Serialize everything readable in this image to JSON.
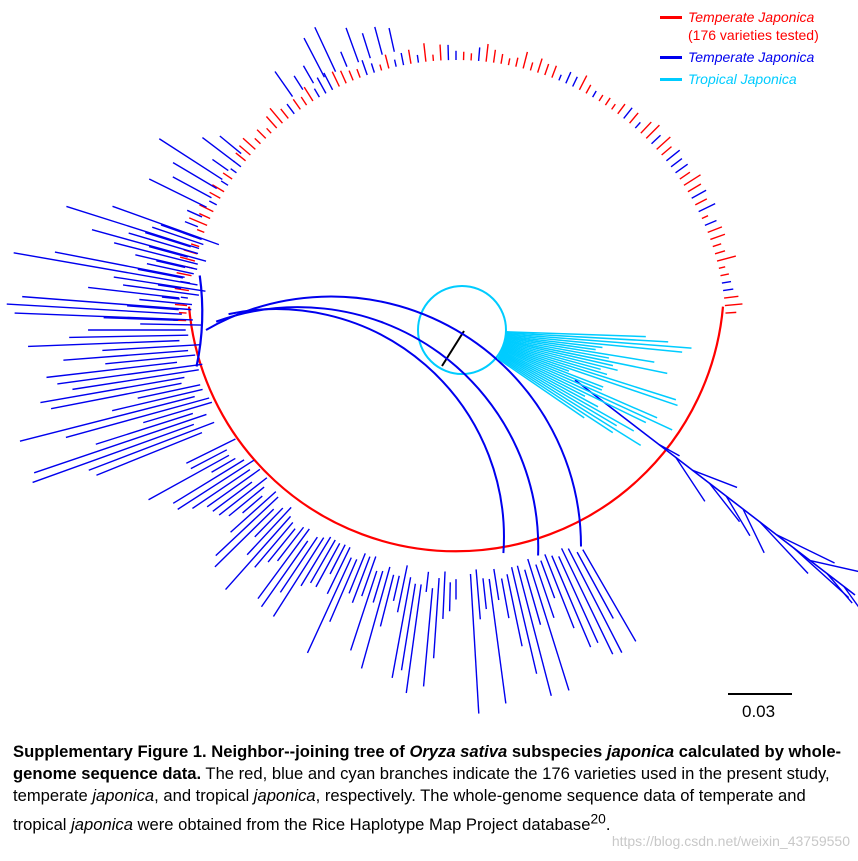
{
  "legend": {
    "items": [
      {
        "label": "Temperate Japonica",
        "sublabel": "(176  varieties tested)",
        "color": "#ff0000"
      },
      {
        "label": "Temperate Japonica",
        "sublabel": "",
        "color": "#0000ee"
      },
      {
        "label": "Tropical Japonica",
        "sublabel": "",
        "color": "#00ccff"
      }
    ]
  },
  "scale": {
    "label": "0.03"
  },
  "caption": {
    "title_prefix": "Supplementary Figure 1. Neighbor--joining tree of ",
    "title_species": "Oryza sativa",
    "title_mid": " subspecies ",
    "title_subspecies": "japonica",
    "title_end": " calculated by whole-genome sequence data.",
    "body_1": " The red, blue and cyan branches indicate the 176 varieties used in the present study, temperate ",
    "body_italic_1": "japonica",
    "body_2": ", and tropical ",
    "body_italic_2": "japonica",
    "body_3": ", respectively. The whole-genome sequence data of temperate and tropical ",
    "body_italic_3": "japonica",
    "body_4": " were obtained from the Rice Haplotype Map Project database",
    "body_sup": "20",
    "body_5": "."
  },
  "watermark": "https://blog.csdn.net/weixin_43759550",
  "colors": {
    "red": "#ff0000",
    "blue": "#0000ee",
    "cyan": "#00ccff",
    "root": "#000000"
  }
}
